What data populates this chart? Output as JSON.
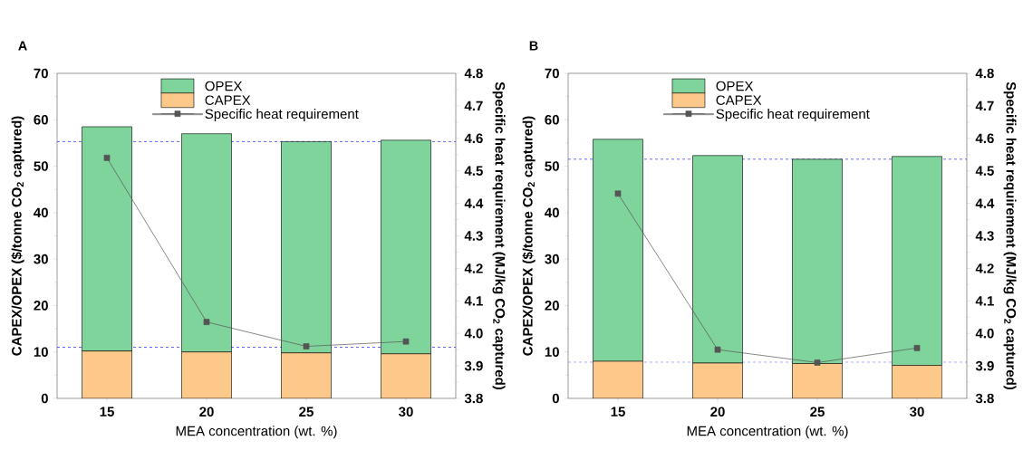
{
  "chart_data": [
    {
      "type": "bar",
      "title": "A",
      "xlabel": "MEA concentration (wt. %)",
      "ylabel": "CAPEX/OPEX ($/tonne CO$_{2}$ captured)",
      "y2label": "Specific heat requirement (MJ/kg CO$_{2}$ captured)",
      "categories": [
        "15",
        "20",
        "25",
        "30"
      ],
      "stacked": true,
      "legend": "top",
      "ylim": [
        0,
        70
      ],
      "yticks": [
        0,
        10,
        20,
        30,
        40,
        50,
        60,
        70
      ],
      "y2lim": [
        3.8,
        4.8
      ],
      "y2ticks": [
        {
          "value": 3.8,
          "label": "3.8"
        },
        {
          "value": 3.9,
          "label": "3.9"
        },
        {
          "value": 4.0,
          "label": "4.0"
        },
        {
          "value": 4.1,
          "label": "4.1"
        },
        {
          "value": 4.2,
          "label": "4.2"
        },
        {
          "value": 4.3,
          "label": "4.3"
        },
        {
          "value": 4.4,
          "label": "4.4"
        },
        {
          "value": 4.5,
          "label": "4.5"
        },
        {
          "value": 4.6,
          "label": "4.6"
        },
        {
          "value": 4.7,
          "label": "4.7"
        },
        {
          "value": 4.8,
          "label": "4.8"
        }
      ],
      "series": [
        {
          "name": "CAPEX",
          "color": "#fdc98a",
          "values": [
            10.2,
            10.0,
            9.8,
            9.6
          ]
        },
        {
          "name": "OPEX",
          "color": "#7fd49b",
          "values": [
            48.3,
            47.0,
            45.5,
            46.0
          ]
        },
        {
          "name": "Specific heat requirement",
          "type": "line",
          "axis": "y2",
          "marker": "square",
          "color": "#555555",
          "values": [
            4.54,
            4.035,
            3.96,
            3.975
          ]
        }
      ],
      "ref_lines": [
        {
          "axis": "y",
          "value": 55.3,
          "color": "#3333ff",
          "line_style": "dashed"
        },
        {
          "axis": "y",
          "value": 11.0,
          "color": "#3333ff",
          "line_style": "dashed"
        }
      ]
    },
    {
      "type": "bar",
      "title": "B",
      "xlabel": "MEA concentration (wt. %)",
      "ylabel": "CAPEX/OPEX ($/tonne CO$_{2}$ captured)",
      "y2label": "Specific heat requirement (MJ/kg CO$_{2}$ captured)",
      "categories": [
        "15",
        "20",
        "25",
        "30"
      ],
      "stacked": true,
      "legend": "top",
      "ylim": [
        0,
        70
      ],
      "yticks": [
        0,
        10,
        20,
        30,
        40,
        50,
        60,
        70
      ],
      "y2lim": [
        3.8,
        4.8
      ],
      "y2ticks": [
        {
          "value": 3.8,
          "label": "3.8"
        },
        {
          "value": 3.9,
          "label": "3.9"
        },
        {
          "value": 4.0,
          "label": "4.0"
        },
        {
          "value": 4.1,
          "label": "4.1"
        },
        {
          "value": 4.2,
          "label": "4.2"
        },
        {
          "value": 4.3,
          "label": "4.3"
        },
        {
          "value": 4.4,
          "label": "4.4"
        },
        {
          "value": 4.5,
          "label": "4.5"
        },
        {
          "value": 4.6,
          "label": "4.6"
        },
        {
          "value": 4.7,
          "label": "4.7"
        },
        {
          "value": 4.8,
          "label": "4.8"
        }
      ],
      "series": [
        {
          "name": "CAPEX",
          "color": "#fdc98a",
          "values": [
            8.0,
            7.6,
            7.5,
            7.1
          ]
        },
        {
          "name": "OPEX",
          "color": "#7fd49b",
          "values": [
            47.8,
            44.7,
            44.0,
            45.0
          ]
        },
        {
          "name": "Specific heat requirement",
          "type": "line",
          "axis": "y2",
          "marker": "square",
          "color": "#555555",
          "values": [
            4.43,
            3.95,
            3.91,
            3.955
          ]
        }
      ],
      "ref_lines": [
        {
          "axis": "y",
          "value": 51.5,
          "color": "#3333ff",
          "line_style": "dashed"
        },
        {
          "axis": "y",
          "value": 7.8,
          "color": "#3333ff",
          "line_style": "dashed"
        }
      ]
    }
  ]
}
